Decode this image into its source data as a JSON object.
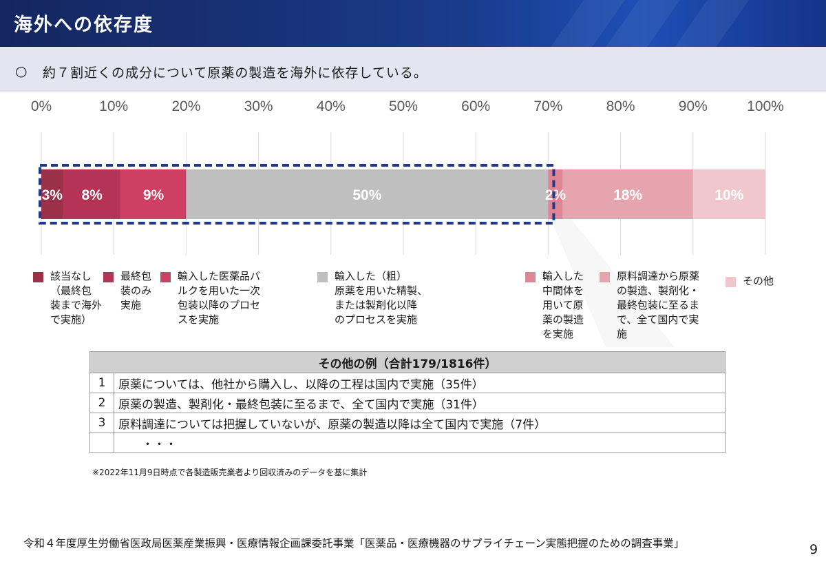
{
  "header": {
    "title": "海外への依存度"
  },
  "subheader": {
    "bullet": "○",
    "text": "約７割近くの成分について原薬の製造を海外に依存している。"
  },
  "chart_data": {
    "type": "bar",
    "orientation": "horizontal-stacked",
    "x_ticks": [
      "0%",
      "10%",
      "20%",
      "30%",
      "40%",
      "50%",
      "60%",
      "70%",
      "80%",
      "90%",
      "100%"
    ],
    "xlim": [
      0,
      100
    ],
    "grid": true,
    "legend_position": "bottom",
    "series": [
      {
        "name": "該当なし\n（最終包\n装まで海外\nで実施）",
        "value": 3,
        "label": "3%",
        "color": "#9b3049"
      },
      {
        "name": "最終包\n装のみ\n実施",
        "value": 8,
        "label": "8%",
        "color": "#b53455"
      },
      {
        "name": "輸入した医薬品バ\nルクを用いた一次\n包装以降のプロセ\nスを実施",
        "value": 9,
        "label": "9%",
        "color": "#cf3f63"
      },
      {
        "name": "輸入した（粗）\n原薬を用いた精製、\nまたは製剤化以降\nのプロセスを実施",
        "value": 50,
        "label": "50%",
        "color": "#bfbfbf"
      },
      {
        "name": "輸入した\n中間体を\n用いて原\n薬の製造\nを実施",
        "value": 2,
        "label": "2%",
        "color": "#e08595"
      },
      {
        "name": "原料調達から原薬\nの製造、製剤化・\n最終包装に至るま\nで、全て国内で実\n施",
        "value": 18,
        "label": "18%",
        "color": "#e6a4af"
      },
      {
        "name": "その他",
        "value": 10,
        "label": "10%",
        "color": "#f1c7ce"
      }
    ],
    "highlight": {
      "from_series": 0,
      "to_series": 3,
      "style": "dashed",
      "color": "#1f3a8a"
    }
  },
  "table": {
    "title": "その他の例（合計179/1816件）",
    "rows": [
      {
        "num": "1",
        "text": "原薬については、他社から購入し、以降の工程は国内で実施（35件）"
      },
      {
        "num": "2",
        "text": "原薬の製造、製剤化・最終包装に至るまで、全て国内で実施（31件）"
      },
      {
        "num": "3",
        "text": "原料調達については把握していないが、原薬の製造以降は全て国内で実施（7件）"
      },
      {
        "num": "",
        "text": "・・・"
      }
    ]
  },
  "footnote": "※2022年11月9日時点で各製造販売業者より回収済みのデータを基に集計",
  "footer": "令和４年度厚生労働省医政局医薬産業振興・医療情報企画課委託事業「医薬品・医療機器のサプライチェーン実態把握のための調査事業」",
  "page_number": "9"
}
